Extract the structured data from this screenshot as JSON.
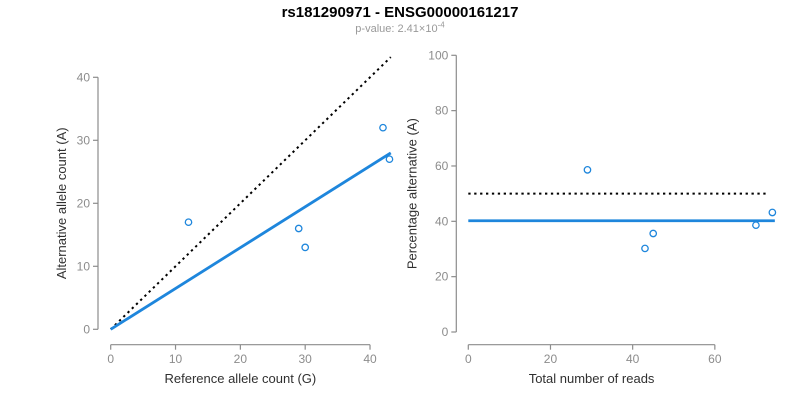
{
  "header": {
    "title": "rs181290971 - ENSG00000161217",
    "pvalue_label": "p-value: 2.41×10",
    "pvalue_exponent": "-4"
  },
  "colors": {
    "accent_blue": "#1E86DC",
    "identity_black": "#000000",
    "axis_gray": "#8C8C8C",
    "tick_label_gray": "#8C8C8C",
    "axis_title_color": "#303030",
    "subtitle_gray": "#999999",
    "background": "#FFFFFF"
  },
  "chart_data": [
    {
      "type": "scatter",
      "name": "allele-counts-panel",
      "xlabel": "Reference allele count (G)",
      "ylabel": "Alternative allele count (A)",
      "xticks": [
        0,
        10,
        20,
        30,
        40
      ],
      "yticks": [
        0,
        10,
        20,
        30,
        40
      ],
      "xlim": [
        -2,
        43.4
      ],
      "ylim": [
        -2.5,
        43.6
      ],
      "grid": false,
      "legend": null,
      "points": [
        [
          12,
          17
        ],
        [
          29,
          16
        ],
        [
          30,
          13
        ],
        [
          42,
          32
        ],
        [
          43,
          27
        ]
      ],
      "lines": [
        {
          "name": "identity-line",
          "role": "expected 1:1 ratio",
          "style": "dotted",
          "color": "#000000",
          "width": 2,
          "x1": 0,
          "y1": 0,
          "x2": 43.2,
          "y2": 43.2
        },
        {
          "name": "fit-line",
          "role": "observed allelic ratio fit (slope 0.65)",
          "style": "solid",
          "color": "#1E86DC",
          "width": 2.8,
          "x1": 0,
          "y1": 0,
          "x2": 43.2,
          "y2": 28
        }
      ]
    },
    {
      "type": "scatter",
      "name": "percentage-panel",
      "xlabel": "Total number of reads",
      "ylabel": "Percentage alternative (A)",
      "xticks": [
        0,
        20,
        40,
        60
      ],
      "yticks": [
        0,
        20,
        40,
        60,
        80,
        100
      ],
      "xlim": [
        -2.8,
        75.8
      ],
      "ylim": [
        -4.6,
        100
      ],
      "grid": false,
      "legend": null,
      "points": [
        [
          29,
          58.6
        ],
        [
          43,
          30.2
        ],
        [
          45,
          35.6
        ],
        [
          70,
          38.6
        ],
        [
          74,
          43.2
        ]
      ],
      "lines": [
        {
          "name": "expected-50pct-line",
          "role": "expected 50% line",
          "style": "dotted",
          "color": "#000000",
          "width": 2,
          "x1": 0,
          "y1": 50,
          "x2": 72.6,
          "y2": 50
        },
        {
          "name": "mean-percentage-line",
          "role": "observed mean percentage 40.2",
          "style": "solid",
          "color": "#1E86DC",
          "width": 2.8,
          "x1": 0,
          "y1": 40.2,
          "x2": 74.6,
          "y2": 40.2
        }
      ]
    }
  ]
}
